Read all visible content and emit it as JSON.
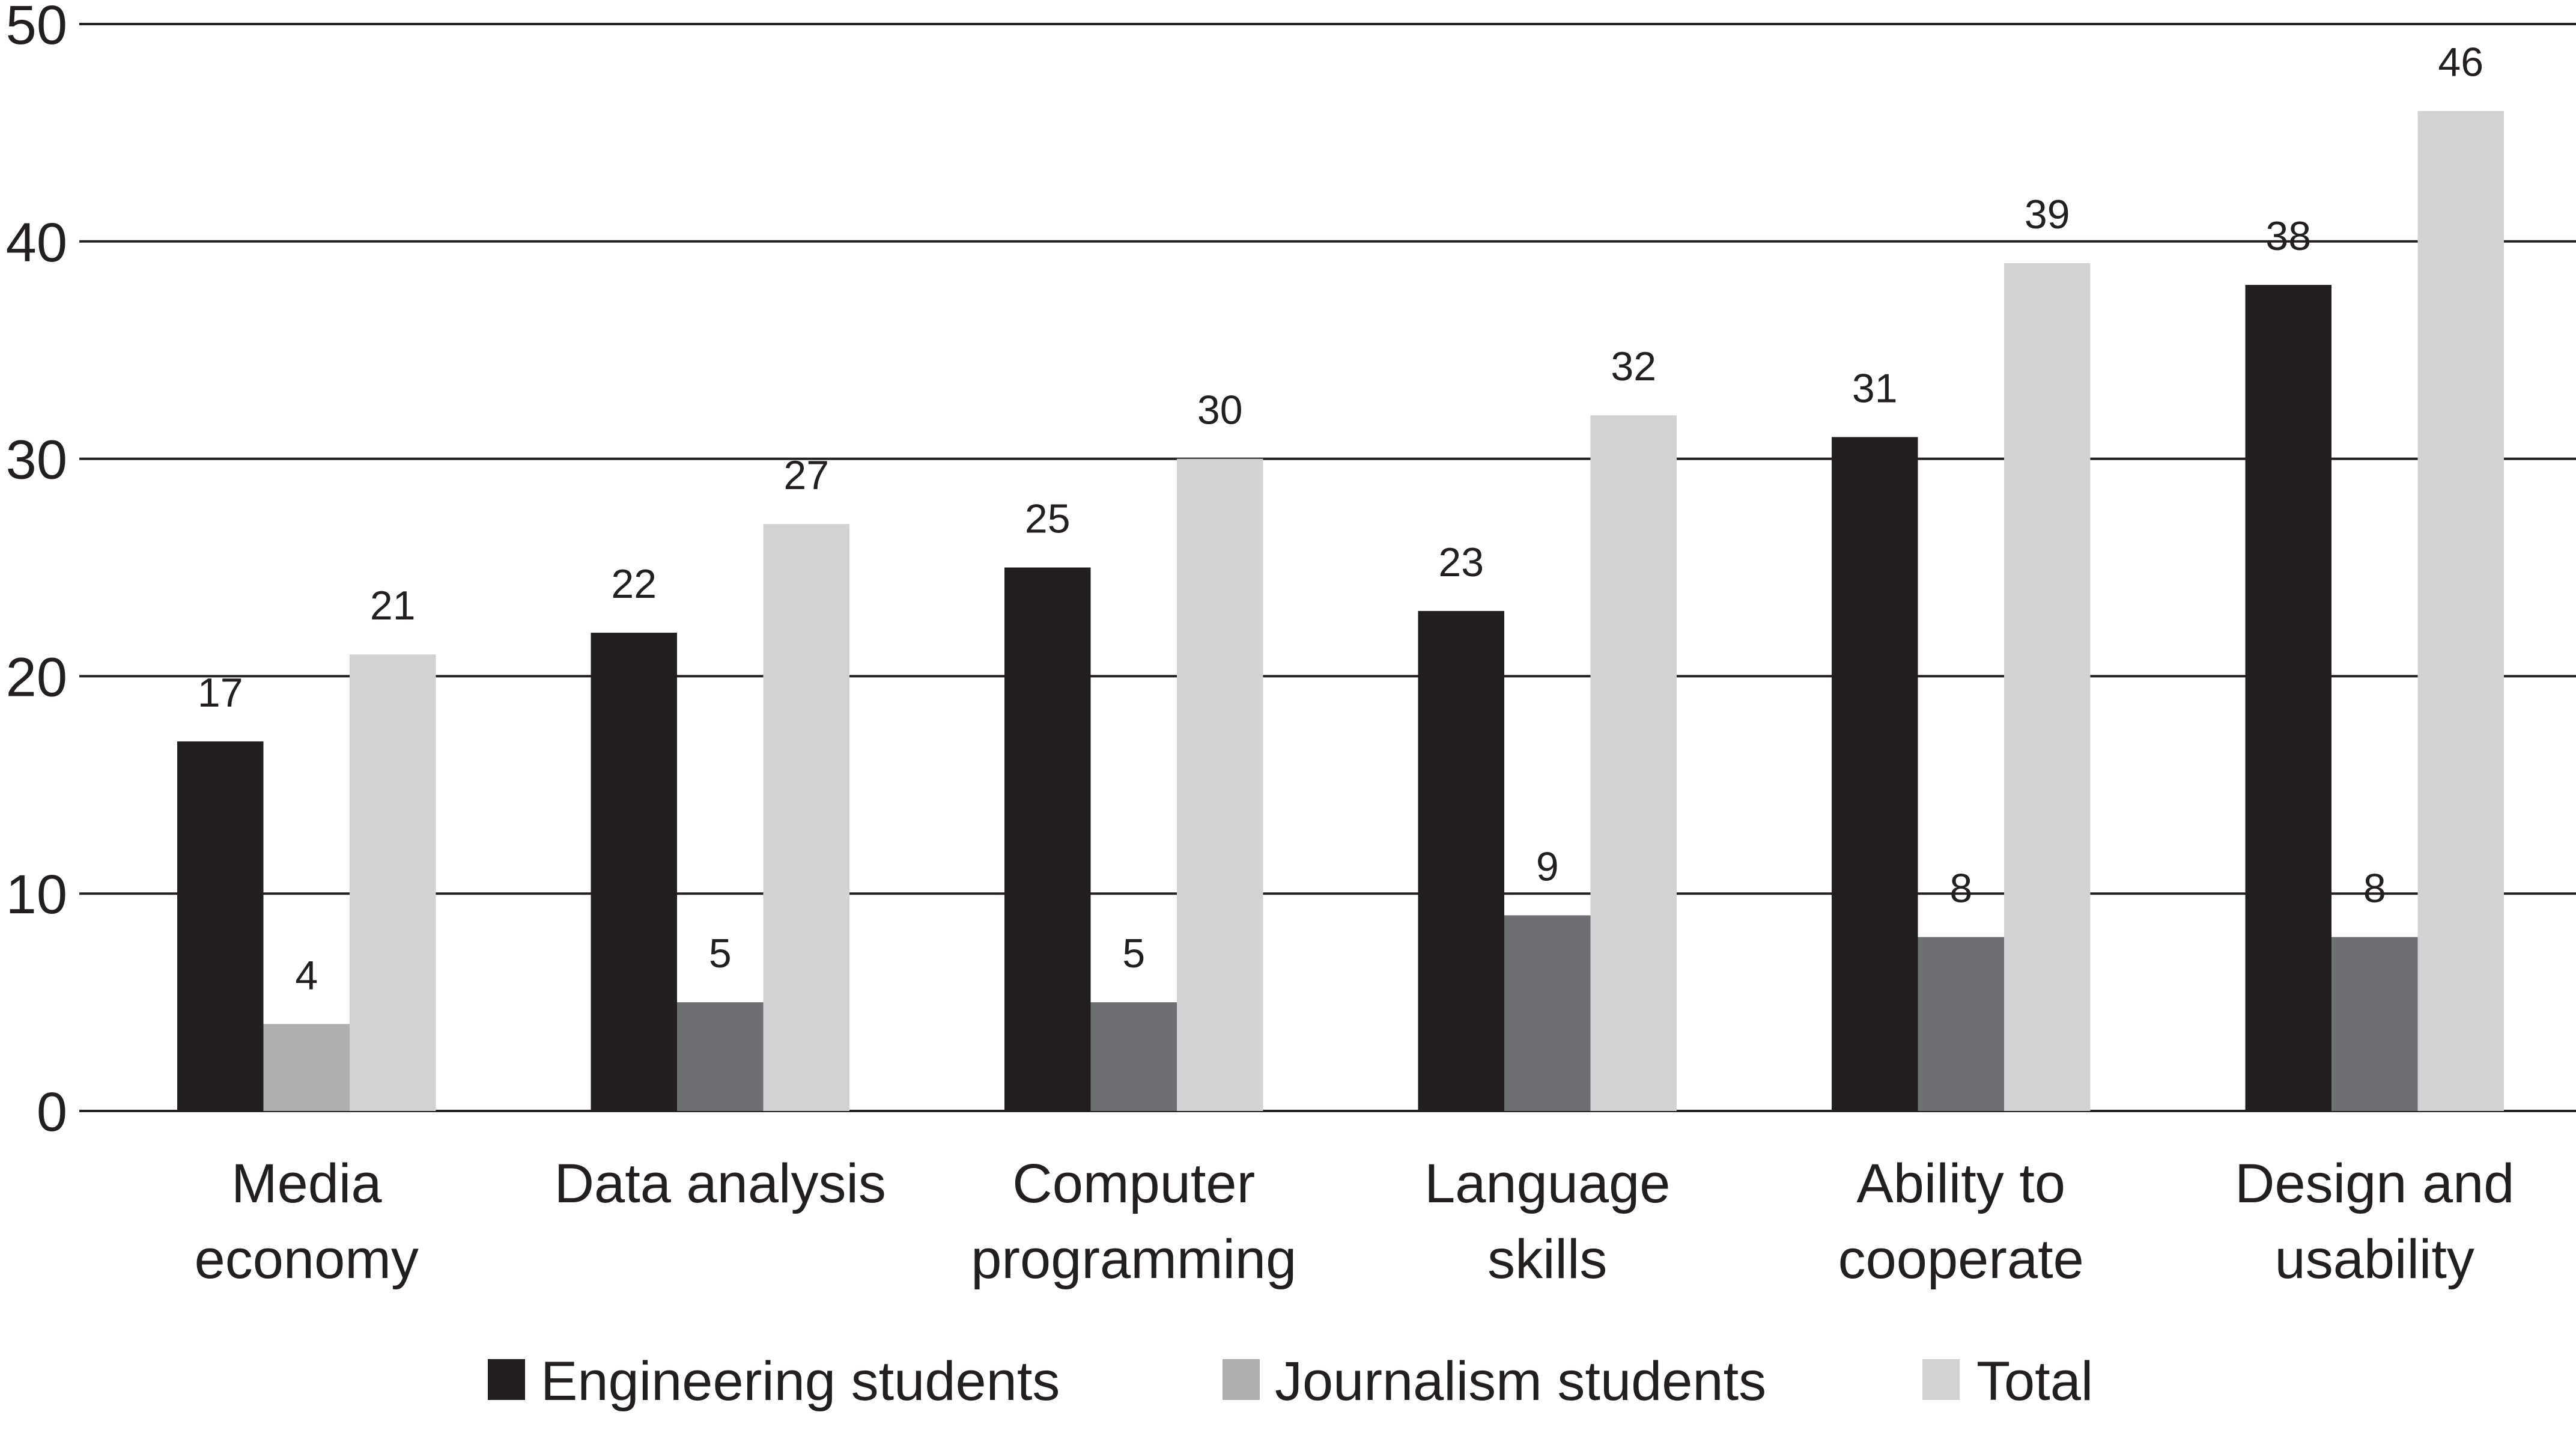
{
  "chart_data": {
    "type": "bar",
    "title": "",
    "xlabel": "",
    "ylabel": "",
    "ylim": [
      0,
      50
    ],
    "yticks": [
      0,
      10,
      20,
      30,
      40,
      50
    ],
    "grid": true,
    "legend_position": "bottom-center",
    "categories": [
      [
        "Media",
        "economy"
      ],
      [
        "Data analysis"
      ],
      [
        "Computer",
        "programming"
      ],
      [
        "Language",
        "skills"
      ],
      [
        "Ability to",
        "cooperate"
      ],
      [
        "Design and",
        "usability"
      ]
    ],
    "series": [
      {
        "name": "Engineering students",
        "color": "#231f20",
        "values": [
          17,
          22,
          25,
          23,
          31,
          38
        ]
      },
      {
        "name": "Journalism students",
        "color": "#6f7073",
        "legend_color": "#afafb0",
        "point_colors": [
          "#afafb0",
          "#6f7073",
          "#6f7073",
          "#6f7073",
          "#6f7073",
          "#6f7073"
        ],
        "values": [
          4,
          5,
          5,
          9,
          8,
          8
        ]
      },
      {
        "name": "Total",
        "color": "#d1d2d4",
        "values": [
          21,
          27,
          30,
          32,
          39,
          46
        ]
      }
    ]
  }
}
